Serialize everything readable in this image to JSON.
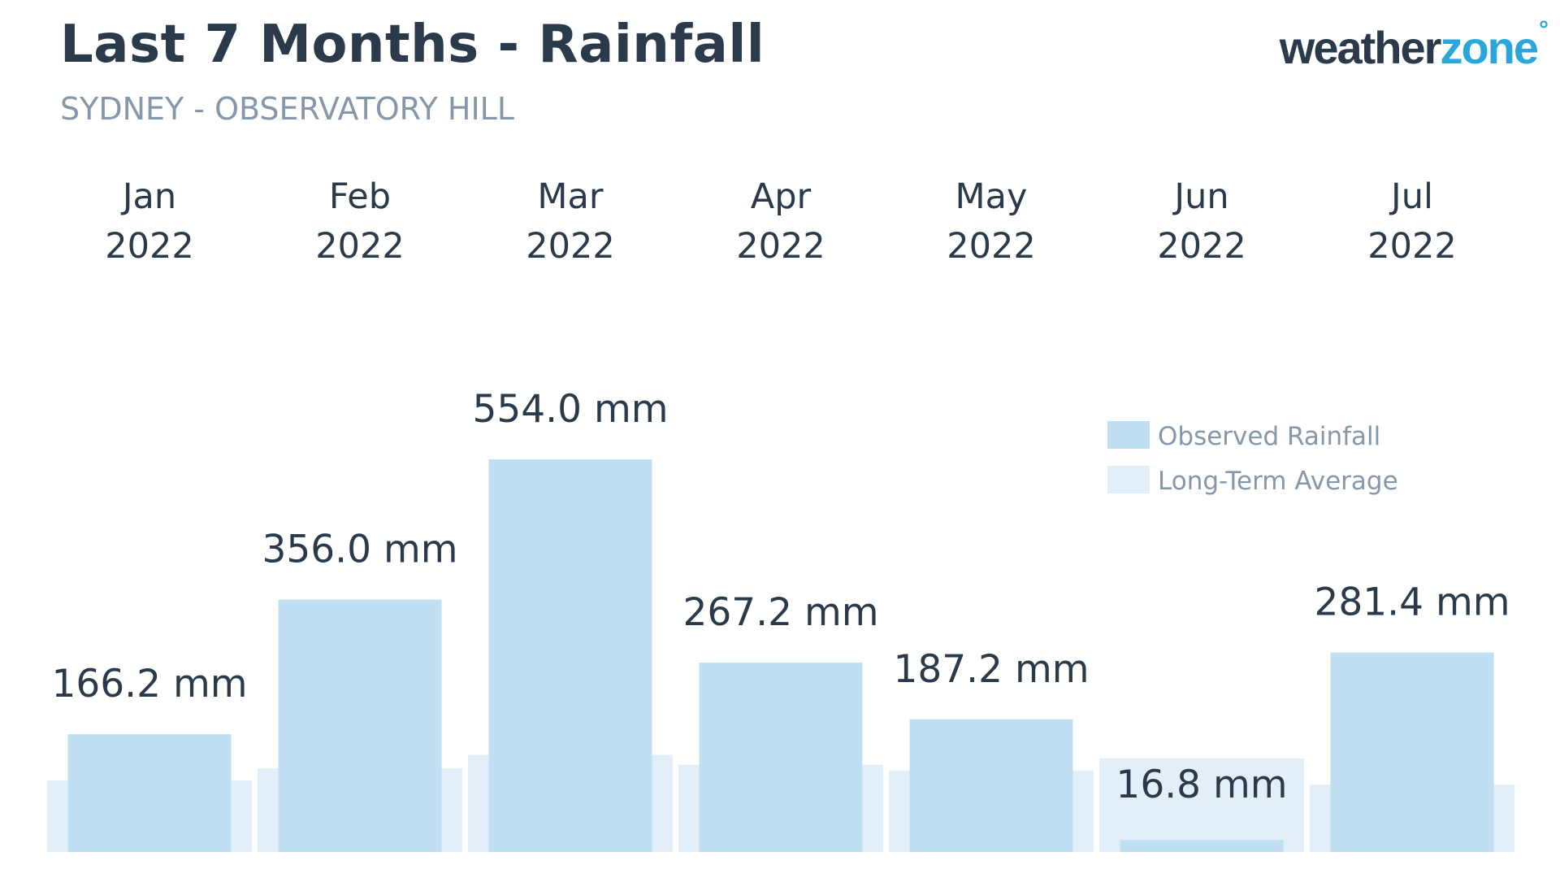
{
  "header": {
    "title": "Last 7 Months - Rainfall",
    "subtitle": "SYDNEY - OBSERVATORY HILL"
  },
  "logo": {
    "part1": "weather",
    "part2": "zone",
    "mark": "°"
  },
  "colors": {
    "observed": "#c0dff2",
    "average": "#e2eff9",
    "text_dark": "#2b3a4a",
    "text_muted": "#8597a8",
    "logo_accent": "#2aa6db"
  },
  "chart_data": {
    "type": "bar",
    "categories": [
      "Jan",
      "Feb",
      "Mar",
      "Apr",
      "May",
      "Jun",
      "Jul"
    ],
    "years": [
      "2022",
      "2022",
      "2022",
      "2022",
      "2022",
      "2022",
      "2022"
    ],
    "series": [
      {
        "name": "Observed Rainfall",
        "values": [
          166.2,
          356.0,
          554.0,
          267.2,
          187.2,
          16.8,
          281.4
        ],
        "labels": [
          "166.2 mm",
          "356.0 mm",
          "554.0 mm",
          "267.2 mm",
          "187.2 mm",
          "16.8 mm",
          "281.4 mm"
        ]
      },
      {
        "name": "Long-Term Average",
        "values": [
          101,
          118,
          137,
          123,
          115,
          132,
          95
        ]
      }
    ],
    "unit": "mm",
    "title": "Last 7 Months - Rainfall",
    "subtitle": "SYDNEY - OBSERVATORY HILL",
    "xlabel": "",
    "ylabel": "",
    "ylim": [
      0,
      554
    ],
    "grid": false,
    "legend_position": "top-right"
  }
}
